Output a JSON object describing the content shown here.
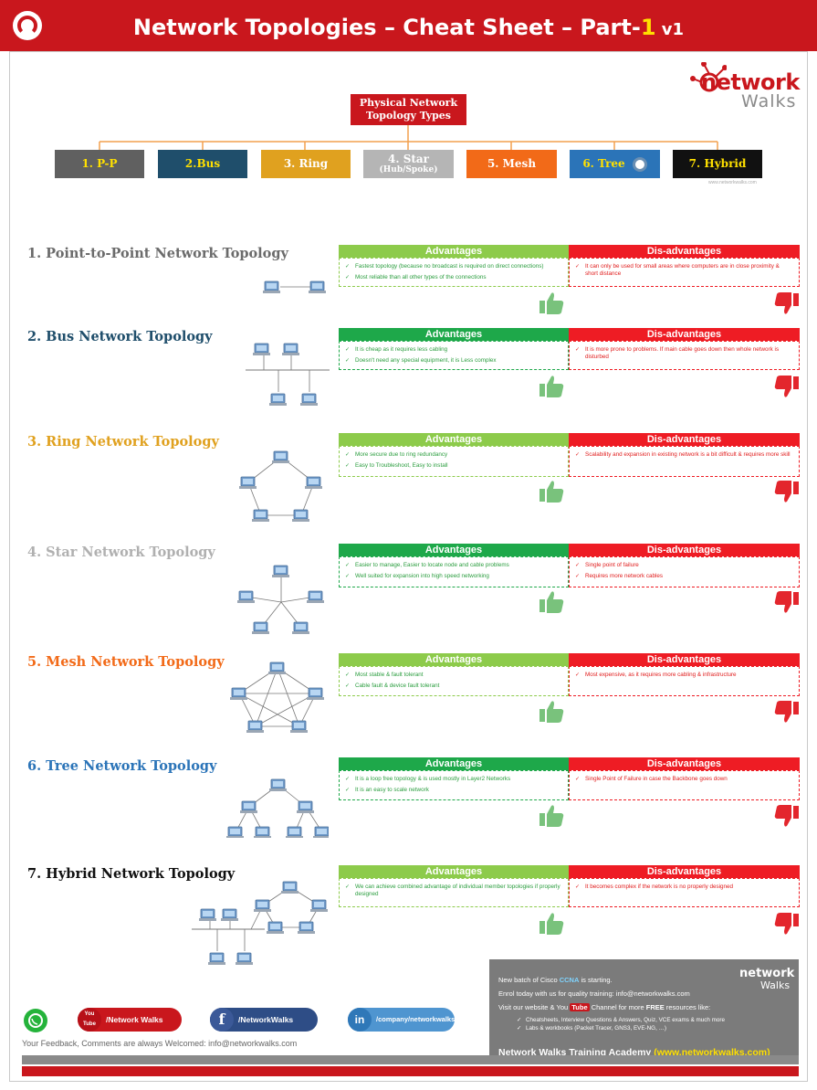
{
  "header": {
    "title_pre": "Network Topologies – Cheat Sheet – Part-",
    "title_num": "1",
    "title_ver": " v1"
  },
  "brand": {
    "word1": "network",
    "word2": "Walks",
    "site": "www.networkwalks.com"
  },
  "tree": {
    "root": "Physical Network Topology Types",
    "types": [
      {
        "label": "1. P-P",
        "sub": "",
        "color": "#606060",
        "text_color": "#ffe000"
      },
      {
        "label": "2.Bus",
        "sub": "",
        "color": "#1f4e6b",
        "text_color": "#ffe000"
      },
      {
        "label": "3. Ring",
        "sub": "",
        "color": "#e0a11f",
        "text_color": "#ffffff"
      },
      {
        "label": "4. Star",
        "sub": "(Hub/Spoke)",
        "color": "#b5b5b5",
        "text_color": "#ffffff"
      },
      {
        "label": "5. Mesh",
        "sub": "",
        "color": "#f26a18",
        "text_color": "#ffffff"
      },
      {
        "label": "6. Tree",
        "sub": "",
        "color": "#2b74b8",
        "text_color": "#ffe000"
      },
      {
        "label": "7. Hybrid",
        "sub": "",
        "color": "#111111",
        "text_color": "#ffe000"
      }
    ]
  },
  "labels": {
    "advantages": "Advantages",
    "disadvantages": "Dis-advantages"
  },
  "colors": {
    "adv_dark": "#1ea84a",
    "adv_light": "#8dcb4b",
    "dis_red": "#ee1c24"
  },
  "sections": [
    {
      "title": "1. Point-to-Point Network Topology",
      "title_color": "#6b6b6b",
      "adv_style": "light",
      "advantages": [
        "Fastest topology (because no broadcast is required on direct connections)",
        "Most reliable than all other types of the connections"
      ],
      "disadvantages": [
        "It can only be used for small areas where computers are in close proximity & short distance"
      ]
    },
    {
      "title": "2. Bus Network Topology",
      "title_color": "#1f4e6b",
      "adv_style": "dark",
      "advantages": [
        "It is cheap as it requires less cabling",
        "Doesn't need any special equipment, it is Less complex"
      ],
      "disadvantages": [
        "It is more prone to problems. If main cable goes down then whole network is disturbed"
      ]
    },
    {
      "title": "3. Ring Network Topology",
      "title_color": "#e0a11f",
      "adv_style": "light",
      "advantages": [
        "More secure due to ring redundancy",
        "Easy to Troubleshoot,  Easy to install"
      ],
      "disadvantages": [
        "Scalability and expansion in existing network is a bit difficult & requires more skill"
      ]
    },
    {
      "title": "4. Star Network Topology",
      "title_color": "#b0b0b0",
      "adv_style": "dark",
      "advantages": [
        "Easier to manage,  Easier to locate node and cable problems",
        "Well suited for expansion into high speed networking"
      ],
      "disadvantages": [
        "Single point of failure",
        "Requires more network cables"
      ]
    },
    {
      "title": "5. Mesh Network Topology",
      "title_color": "#f26a18",
      "adv_style": "light",
      "advantages": [
        "Most stable & fault tolerant",
        "Cable fault & device fault tolerant"
      ],
      "disadvantages": [
        "Most expensive, as it requires more cabling & infrastructure"
      ]
    },
    {
      "title": "6. Tree Network Topology",
      "title_color": "#2b74b8",
      "adv_style": "dark",
      "advantages": [
        "It is a loop free topology & is used mostly in Layer2 Networks",
        "It is an easy to scale network"
      ],
      "disadvantages": [
        "Single Point of Failure in case the Backbone goes down"
      ]
    },
    {
      "title": "7. Hybrid Network Topology",
      "title_color": "#111111",
      "adv_style": "light",
      "advantages": [
        "We can achieve combined advantage of individual member topologies if properly designed"
      ],
      "disadvantages": [
        "It becomes complex if the network is no properly designed"
      ]
    }
  ],
  "promo": {
    "line1_pre": "New batch of Cisco ",
    "line1_hl": "CCNA",
    "line1_post": " is starting.",
    "line2": "Enrol today with us for quality training: info@networkwalks.com",
    "line3_pre": "Visit our website & You",
    "line3_yt": "Tube",
    "line3_mid": " Channel for more ",
    "line3_free": "FREE",
    "line3_post": " resources like:",
    "bullets": [
      "Cheatsheets,  Interview Questions & Answers, Quiz, VCE exams & much more",
      "Labs & workbooks (Packet Tracer, GNS3, EVE-NG, …)"
    ],
    "academy": "Network Walks Training Academy ",
    "academy_url": "(www.networkwalks.com)"
  },
  "social": {
    "youtube": "/Network Walks",
    "youtube_icon": "You Tube",
    "facebook": "/NetworkWalks",
    "linkedin": "/company/networkwalks",
    "linkedin_icon": "in"
  },
  "feedback": "Your Feedback, Comments are always Welcomed: info@networkwalks.com"
}
